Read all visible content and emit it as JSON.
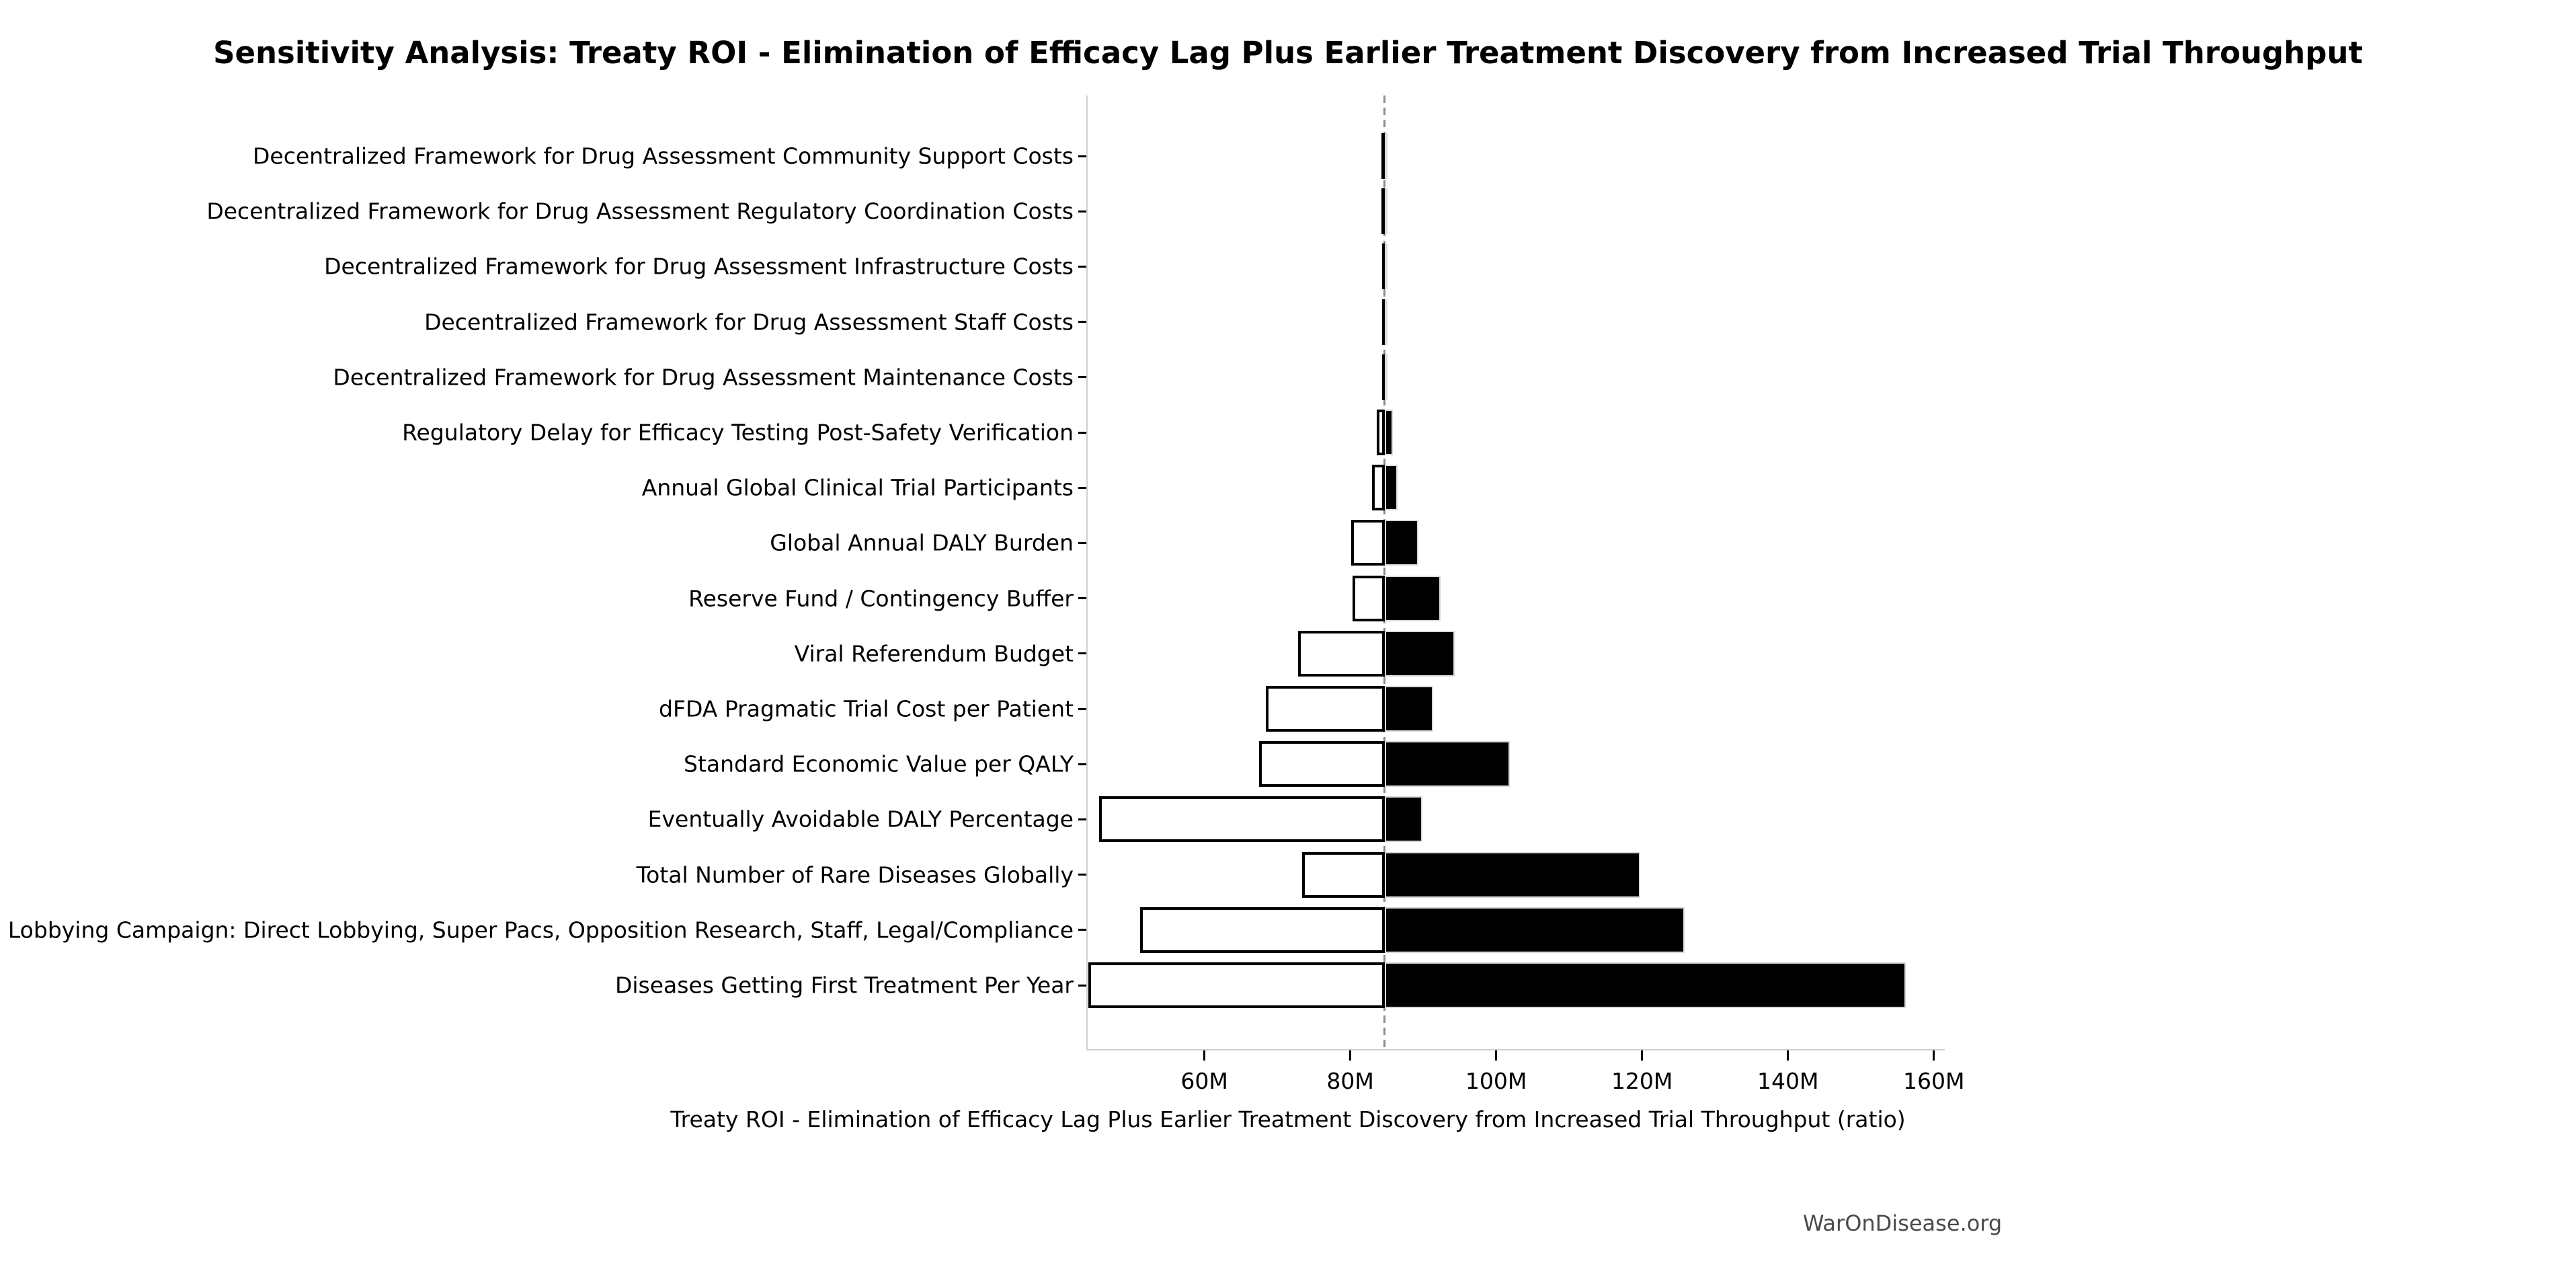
{
  "header": {
    "title": "Sensitivity Analysis: Treaty ROI - Elimination of Efficacy Lag Plus Earlier Treatment Discovery from Increased Trial Throughput"
  },
  "footer": {
    "watermark": "WarOnDisease.org"
  },
  "colors": {
    "bar_low_fill": "#ffffff",
    "bar_low_border": "#000000",
    "bar_high_fill": "#000000",
    "bar_high_border": "#d9d9d9",
    "baseline_line": "#8c8c8c",
    "spine": "#cfcfcf",
    "tick": "#000000",
    "text": "#000000",
    "watermark_text": "#4a4a4a"
  },
  "chart_data": {
    "type": "bar",
    "subtype": "tornado-sensitivity",
    "orientation": "horizontal",
    "title": "Sensitivity Analysis: Treaty ROI - Elimination of Efficacy Lag Plus Earlier Treatment Discovery from Increased Trial Throughput",
    "xlabel": "Treaty ROI - Elimination of Efficacy Lag Plus Earlier Treatment Discovery from Increased Trial Throughput (ratio)",
    "ylabel": "",
    "unit": "M",
    "xlim": [
      44.0,
      161.5
    ],
    "baseline_value": 84.7,
    "grid": false,
    "legend_position": "none",
    "x_ticks": [
      {
        "value": 60,
        "label": "60M"
      },
      {
        "value": 80,
        "label": "80M"
      },
      {
        "value": 100,
        "label": "100M"
      },
      {
        "value": 120,
        "label": "120M"
      },
      {
        "value": 140,
        "label": "140M"
      },
      {
        "value": 160,
        "label": "160M"
      }
    ],
    "categories": [
      "Decentralized Framework for Drug Assessment Community Support Costs",
      "Decentralized Framework for Drug Assessment Regulatory Coordination Costs",
      "Decentralized Framework for Drug Assessment Infrastructure Costs",
      "Decentralized Framework for Drug Assessment Staff Costs",
      "Decentralized Framework for Drug Assessment Maintenance Costs",
      "Regulatory Delay for Efficacy Testing Post-Safety Verification",
      "Annual Global Clinical Trial Participants",
      "Global Annual DALY Burden",
      "Reserve Fund / Contingency Buffer",
      "Viral Referendum Budget",
      "dFDA Pragmatic Trial Cost per Patient",
      "Standard Economic Value per QALY",
      "Eventually Avoidable DALY Percentage",
      "Total Number of Rare Diseases Globally",
      "Political Lobbying Campaign: Direct Lobbying, Super Pacs, Opposition Research, Staff, Legal/Compliance",
      "Diseases Getting First Treatment Per Year"
    ],
    "series": [
      {
        "name": "Low estimate (white bar, left of baseline)",
        "values": [
          84.27,
          84.3,
          84.32,
          84.35,
          84.38,
          83.6,
          83.0,
          80.1,
          80.3,
          72.8,
          68.4,
          67.5,
          45.6,
          73.4,
          51.2,
          44.1
        ]
      },
      {
        "name": "High estimate (black bar, right of baseline)",
        "values": [
          85.1,
          85.08,
          85.06,
          85.03,
          85.0,
          85.8,
          86.5,
          89.3,
          92.4,
          94.3,
          91.4,
          101.9,
          89.9,
          119.8,
          125.8,
          156.2
        ]
      }
    ]
  }
}
